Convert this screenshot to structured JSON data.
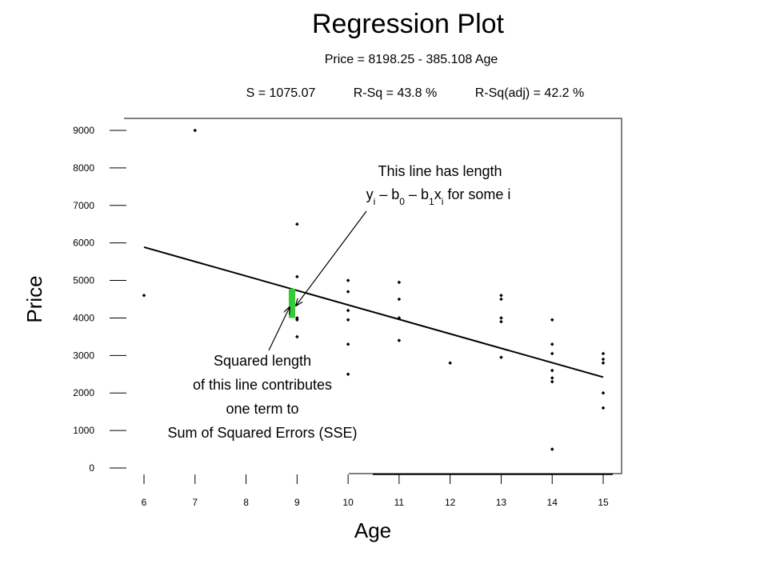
{
  "chart_data": {
    "type": "scatter",
    "title": "Regression Plot",
    "equation": "Price = 8198.25 - 385.108 Age",
    "stats": {
      "s": "S = 1075.07",
      "rsq": "R-Sq = 43.8 %",
      "rsq_adj": "R-Sq(adj) = 42.2 %"
    },
    "xlabel": "Age",
    "ylabel": "Price",
    "xlim": [
      6,
      15
    ],
    "ylim": [
      0,
      9000
    ],
    "x_ticks": [
      "6",
      "7",
      "8",
      "9",
      "10",
      "11",
      "12",
      "13",
      "14",
      "15"
    ],
    "y_ticks": [
      "0",
      "1000",
      "2000",
      "3000",
      "4000",
      "5000",
      "6000",
      "7000",
      "8000",
      "9000"
    ],
    "regression": {
      "intercept": 8198.25,
      "slope": -385.108,
      "x_range": [
        6,
        15
      ]
    },
    "points": [
      {
        "x": 6,
        "y": 4600
      },
      {
        "x": 7,
        "y": 9000
      },
      {
        "x": 9,
        "y": 6500
      },
      {
        "x": 9,
        "y": 5100
      },
      {
        "x": 9,
        "y": 4000
      },
      {
        "x": 9,
        "y": 3950
      },
      {
        "x": 9,
        "y": 3500
      },
      {
        "x": 10,
        "y": 5000
      },
      {
        "x": 10,
        "y": 4700
      },
      {
        "x": 10,
        "y": 4200
      },
      {
        "x": 10,
        "y": 3950
      },
      {
        "x": 10,
        "y": 3300
      },
      {
        "x": 10,
        "y": 2500
      },
      {
        "x": 11,
        "y": 4950
      },
      {
        "x": 11,
        "y": 4500
      },
      {
        "x": 11,
        "y": 4000
      },
      {
        "x": 11,
        "y": 3400
      },
      {
        "x": 12,
        "y": 2800
      },
      {
        "x": 13,
        "y": 4600
      },
      {
        "x": 13,
        "y": 4500
      },
      {
        "x": 13,
        "y": 4000
      },
      {
        "x": 13,
        "y": 3900
      },
      {
        "x": 13,
        "y": 2950
      },
      {
        "x": 14,
        "y": 3950
      },
      {
        "x": 14,
        "y": 3300
      },
      {
        "x": 14,
        "y": 3050
      },
      {
        "x": 14,
        "y": 2600
      },
      {
        "x": 14,
        "y": 2400
      },
      {
        "x": 14,
        "y": 2300
      },
      {
        "x": 14,
        "y": 500
      },
      {
        "x": 15,
        "y": 3050
      },
      {
        "x": 15,
        "y": 2900
      },
      {
        "x": 15,
        "y": 2800
      },
      {
        "x": 15,
        "y": 2000
      },
      {
        "x": 15,
        "y": 1600
      }
    ],
    "highlight_residual": {
      "x": 8.9,
      "y_from": 4000,
      "y_to": 4780,
      "color": "#33cc33"
    },
    "annotations": {
      "residual_line1": "This line has length",
      "residual_line2_parts": [
        "y",
        "i",
        " – b",
        "0",
        " – b",
        "1",
        "x",
        "i",
        " for some i"
      ],
      "squared_lines": [
        "Squared length",
        "of this line contributes",
        "one term to",
        "Sum of Squared Errors (SSE)"
      ]
    },
    "grid": false,
    "legend": "none"
  }
}
